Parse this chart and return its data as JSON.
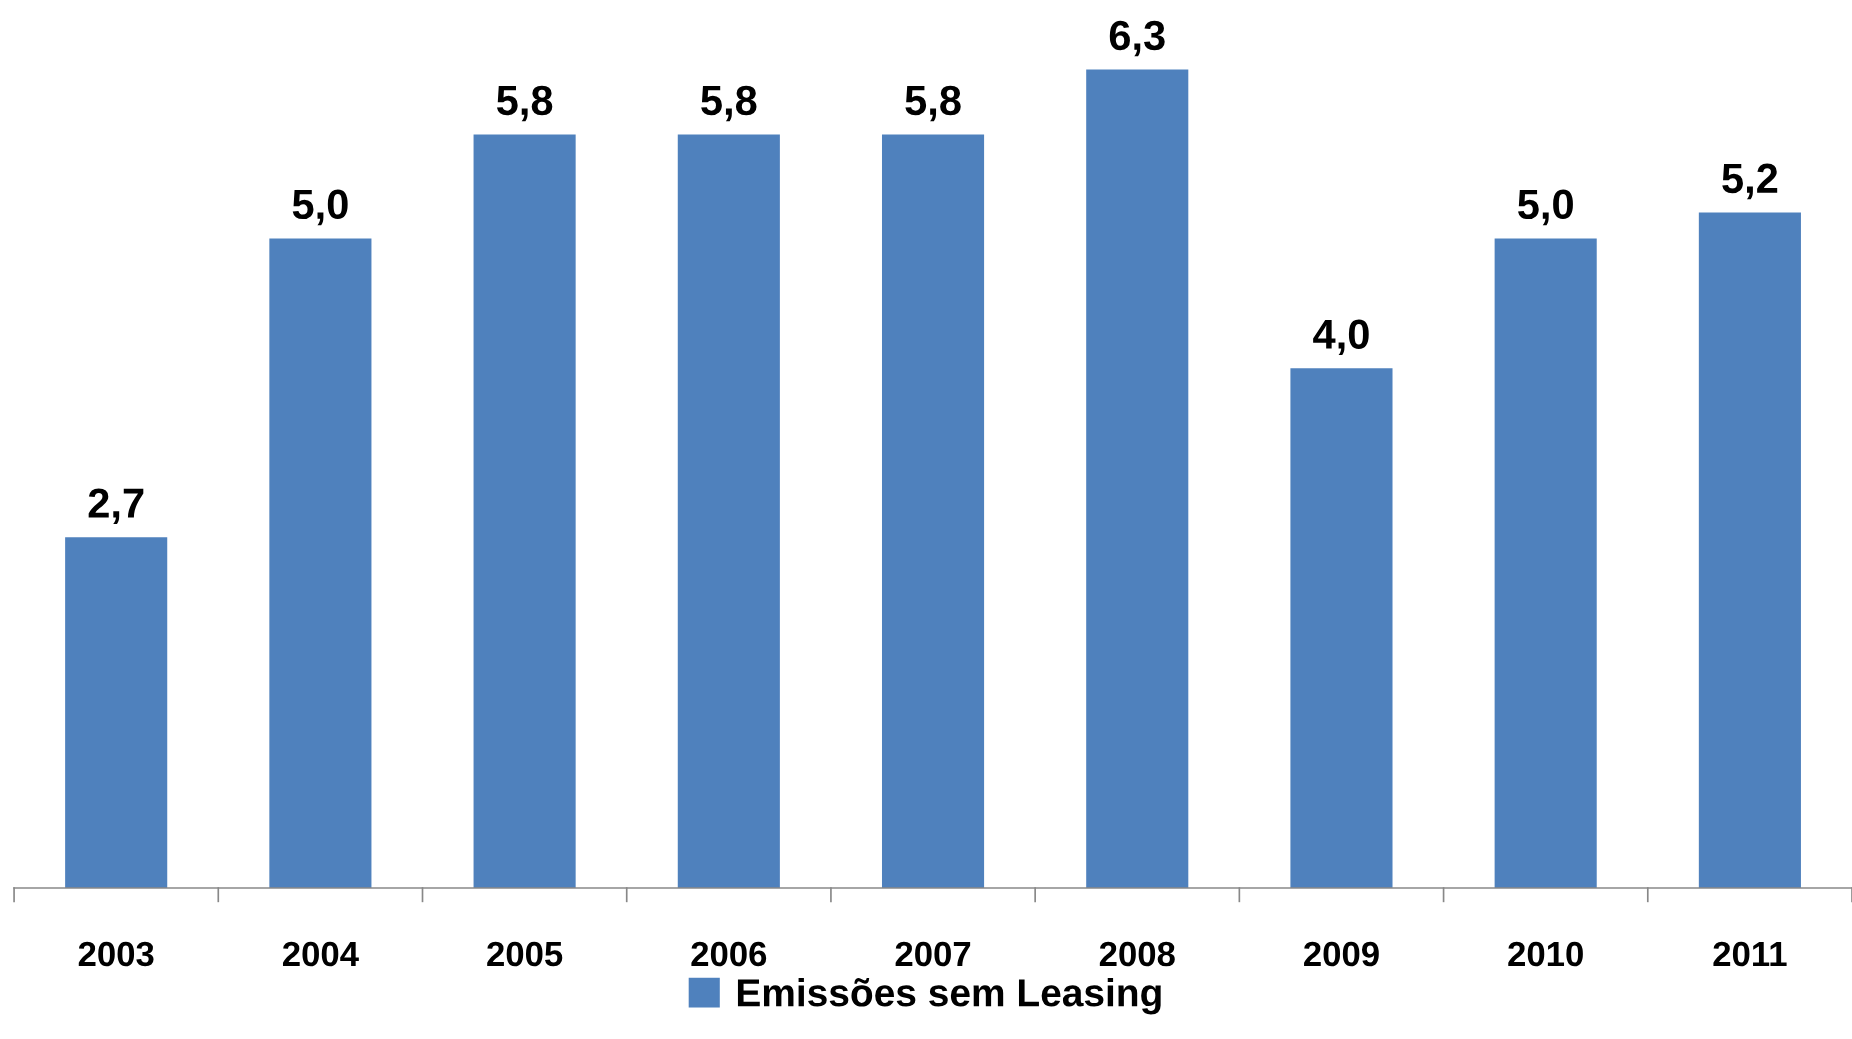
{
  "chart_data": {
    "type": "bar",
    "categories": [
      "2003",
      "2004",
      "2005",
      "2006",
      "2007",
      "2008",
      "2009",
      "2010",
      "2011"
    ],
    "series": [
      {
        "name": "Emissões sem Leasing",
        "color": "#4f81bd",
        "values": [
          2.7,
          5.0,
          5.8,
          5.8,
          5.8,
          6.3,
          4.0,
          5.0,
          5.2
        ],
        "value_labels": [
          "2,7",
          "5,0",
          "5,8",
          "5,8",
          "5,8",
          "6,3",
          "4,0",
          "5,0",
          "5,2"
        ]
      }
    ],
    "legend": "bottom",
    "grid": false
  }
}
